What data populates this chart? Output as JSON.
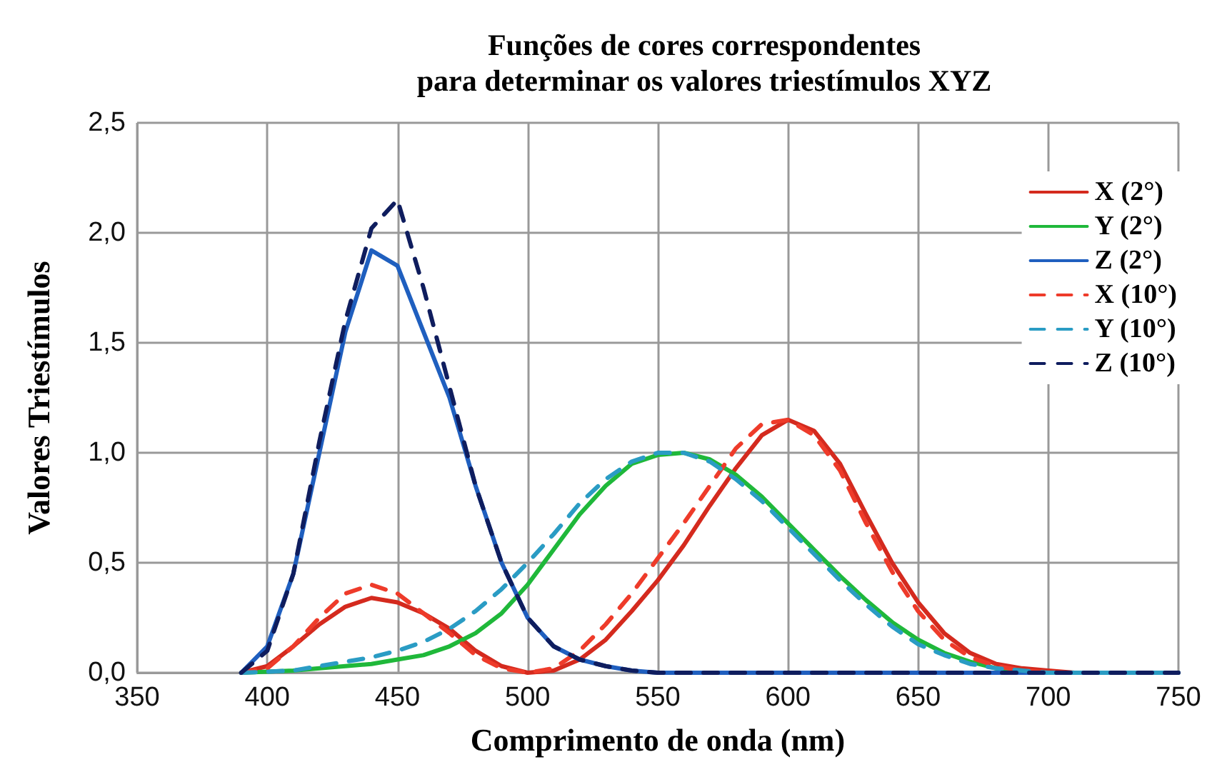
{
  "chart_data": {
    "type": "line",
    "title": "Funções de cores correspondentes\npara determinar os valores triestímulos XYZ",
    "xlabel": "Comprimento de onda (nm)",
    "ylabel": "Valores Triestímulos",
    "x": [
      390,
      400,
      410,
      420,
      430,
      440,
      450,
      460,
      470,
      480,
      490,
      500,
      510,
      520,
      530,
      540,
      550,
      560,
      570,
      580,
      590,
      600,
      610,
      620,
      630,
      640,
      650,
      660,
      670,
      680,
      690,
      700,
      710,
      720,
      730,
      740,
      750
    ],
    "series": [
      {
        "name": "X (2°)",
        "color": "#d42a1e",
        "line_style": "solid",
        "values": [
          0,
          0.03,
          0.12,
          0.22,
          0.3,
          0.34,
          0.32,
          0.27,
          0.2,
          0.1,
          0.03,
          0,
          0.01,
          0.06,
          0.15,
          0.28,
          0.42,
          0.58,
          0.76,
          0.93,
          1.08,
          1.15,
          1.1,
          0.95,
          0.72,
          0.5,
          0.32,
          0.18,
          0.09,
          0.04,
          0.02,
          0.01,
          0,
          0,
          null,
          null,
          null
        ]
      },
      {
        "name": "Y (2°)",
        "color": "#1fb83a",
        "line_style": "solid",
        "values": [
          0,
          0.005,
          0.01,
          0.02,
          0.03,
          0.04,
          0.06,
          0.08,
          0.12,
          0.18,
          0.27,
          0.4,
          0.56,
          0.72,
          0.85,
          0.95,
          0.99,
          1.0,
          0.97,
          0.9,
          0.8,
          0.68,
          0.56,
          0.44,
          0.33,
          0.23,
          0.15,
          0.09,
          0.05,
          0.02,
          0.01,
          null,
          null,
          null,
          null,
          null,
          null
        ]
      },
      {
        "name": "Z (2°)",
        "color": "#1f5fbf",
        "line_style": "solid",
        "values": [
          0,
          0.12,
          0.45,
          1.0,
          1.55,
          1.92,
          1.85,
          1.55,
          1.25,
          0.85,
          0.5,
          0.25,
          0.12,
          0.06,
          0.03,
          0.01,
          0,
          0,
          0,
          0,
          0,
          0,
          0,
          0,
          0,
          0,
          0,
          0,
          0,
          0,
          0,
          0,
          0,
          null,
          null,
          null,
          null
        ]
      },
      {
        "name": "X (10°)",
        "color": "#ee3b2a",
        "line_style": "dashed",
        "values": [
          0,
          0.02,
          0.12,
          0.25,
          0.36,
          0.4,
          0.36,
          0.27,
          0.18,
          0.08,
          0.02,
          0,
          0.02,
          0.1,
          0.22,
          0.36,
          0.52,
          0.68,
          0.85,
          1.02,
          1.13,
          1.15,
          1.08,
          0.92,
          0.68,
          0.46,
          0.28,
          0.15,
          0.07,
          0.03,
          0.01,
          0,
          0,
          0,
          null,
          null,
          null
        ]
      },
      {
        "name": "Y (10°)",
        "color": "#2a9cc4",
        "line_style": "dashed",
        "values": [
          0,
          0.005,
          0.01,
          0.03,
          0.05,
          0.07,
          0.1,
          0.14,
          0.2,
          0.28,
          0.38,
          0.5,
          0.63,
          0.77,
          0.88,
          0.96,
          1.0,
          1.0,
          0.96,
          0.88,
          0.78,
          0.66,
          0.54,
          0.42,
          0.31,
          0.21,
          0.13,
          0.08,
          0.04,
          0.02,
          0.01,
          0,
          0,
          0,
          0,
          0,
          0
        ]
      },
      {
        "name": "Z (10°)",
        "color": "#0f1d5e",
        "line_style": "dashed",
        "values": [
          0,
          0.1,
          0.45,
          1.05,
          1.6,
          2.02,
          2.15,
          1.75,
          1.3,
          0.85,
          0.5,
          0.25,
          0.12,
          0.06,
          0.03,
          0.01,
          0,
          0,
          0,
          0,
          0,
          0,
          0,
          0,
          0,
          0,
          0,
          0,
          0,
          0,
          0,
          0,
          0,
          0,
          0,
          0,
          0
        ]
      }
    ],
    "xlim": [
      350,
      750
    ],
    "xticks": [
      350,
      400,
      450,
      500,
      550,
      600,
      650,
      700,
      750
    ],
    "ylim": [
      0,
      2.5
    ],
    "yticks": [
      {
        "value": 0,
        "label": "0,0"
      },
      {
        "value": 0.5,
        "label": "0,5"
      },
      {
        "value": 1,
        "label": "1,0"
      },
      {
        "value": 1.5,
        "label": "1,5"
      },
      {
        "value": 2,
        "label": "2,0"
      },
      {
        "value": 2.5,
        "label": "2,5"
      }
    ],
    "grid": true,
    "legend": "top right",
    "marker": "none"
  }
}
